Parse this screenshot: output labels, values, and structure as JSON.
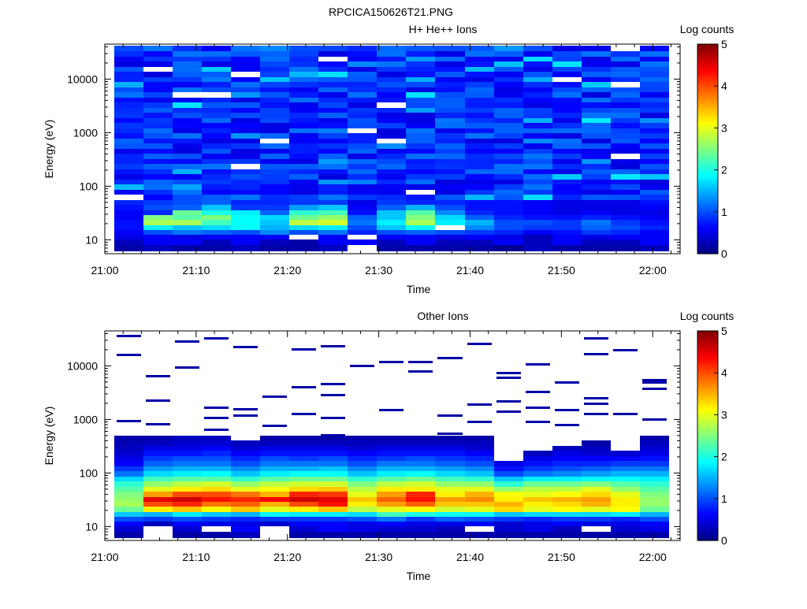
{
  "figure_title": "RPCICA150626T21.PNG",
  "chart_data": [
    {
      "type": "heatmap",
      "title": "H+ He++ Ions",
      "xlabel": "Time",
      "ylabel": "Energy (eV)",
      "yscale": "log",
      "ylim": [
        5.5,
        45000
      ],
      "xlim": [
        "21:00",
        "22:03"
      ],
      "x_ticks": [
        "21:00",
        "21:10",
        "21:20",
        "21:30",
        "21:40",
        "21:50",
        "22:00"
      ],
      "y_ticks": [
        "10",
        "100",
        "1000",
        "10000"
      ],
      "colorbar_label": "Log counts",
      "colorbar_ticks": [
        "0",
        "1",
        "2",
        "3",
        "4",
        "5"
      ],
      "colorbar_range": [
        0,
        5
      ],
      "colormap": "jet",
      "time_start": "21:01",
      "time_step_min": 3.2,
      "time_bins": 19,
      "energy_levels": [
        7,
        9,
        11,
        14,
        17,
        21,
        26,
        32,
        40,
        50,
        62,
        77,
        96,
        120,
        150,
        185,
        230,
        290,
        360,
        450,
        560,
        700,
        870,
        1080,
        1350,
        1680,
        2100,
        2600,
        3250,
        4050,
        5050,
        6300,
        7850,
        9800,
        12200,
        15200,
        19000,
        23700,
        29600,
        37000
      ],
      "low_energy_counts": [
        [
          0.2,
          0.3,
          0.2,
          0.2,
          0.3,
          0.2,
          0.2,
          0.3,
          null,
          0.2,
          0.2,
          0.2,
          0.2,
          0.1,
          0.3,
          0.2,
          0.2,
          0.2,
          0.3
        ],
        [
          0.3,
          0.6,
          0.6,
          0.3,
          0.6,
          0.3,
          0.2,
          0.6,
          0.6,
          0.3,
          0.6,
          0.3,
          0.3,
          0.6,
          0.3,
          0.6,
          0.3,
          0.3,
          0.6
        ],
        [
          0.5,
          0.6,
          0.5,
          0.6,
          0.6,
          0.6,
          null,
          0.6,
          null,
          0.6,
          0.6,
          0.5,
          0.6,
          0.5,
          0.3,
          0.6,
          0.5,
          0.6,
          0.6
        ],
        [
          0.6,
          1.0,
          1.2,
          1.1,
          1.0,
          1.3,
          1.0,
          1.2,
          0.8,
          1.0,
          1.1,
          1.0,
          0.9,
          0.8,
          0.6,
          0.7,
          0.9,
          0.8,
          0.6
        ],
        [
          0.7,
          1.8,
          1.6,
          1.7,
          1.9,
          1.5,
          1.7,
          1.8,
          1.0,
          1.6,
          1.9,
          null,
          1.3,
          1.0,
          0.9,
          0.9,
          1.1,
          1.0,
          0.8
        ],
        [
          0.7,
          2.7,
          2.7,
          2.2,
          1.9,
          1.6,
          2.8,
          2.9,
          1.2,
          1.8,
          2.7,
          1.8,
          1.5,
          1.0,
          1.0,
          0.9,
          1.2,
          0.9,
          0.7
        ],
        [
          0.6,
          2.5,
          2.3,
          2.5,
          1.9,
          1.7,
          2.4,
          2.6,
          1.1,
          1.6,
          2.5,
          1.7,
          1.1,
          0.8,
          0.7,
          0.7,
          0.8,
          0.7,
          0.6
        ],
        [
          0.6,
          0.8,
          2.4,
          2.0,
          1.8,
          1.1,
          2.1,
          2.2,
          0.7,
          1.6,
          2.3,
          1.3,
          0.8,
          0.7,
          0.6,
          0.5,
          0.6,
          0.5,
          0.5
        ],
        [
          0.7,
          1.0,
          1.1,
          1.6,
          0.9,
          0.9,
          1.4,
          1.6,
          0.6,
          1.1,
          1.5,
          1.0,
          0.7,
          0.7,
          0.6,
          0.5,
          0.5,
          0.5,
          0.6
        ],
        [
          0.8,
          0.9,
          1.0,
          1.1,
          0.8,
          0.8,
          0.9,
          0.9,
          0.5,
          0.9,
          0.8,
          0.8,
          0.7,
          0.7,
          0.6,
          0.5,
          0.5,
          0.5,
          0.7
        ]
      ]
    },
    {
      "type": "heatmap",
      "title": "Other Ions",
      "xlabel": "Time",
      "ylabel": "Energy (eV)",
      "yscale": "log",
      "ylim": [
        5.5,
        45000
      ],
      "xlim": [
        "21:00",
        "22:03"
      ],
      "x_ticks": [
        "21:00",
        "21:10",
        "21:20",
        "21:30",
        "21:40",
        "21:50",
        "22:00"
      ],
      "y_ticks": [
        "10",
        "100",
        "1000",
        "10000"
      ],
      "colorbar_label": "Log counts",
      "colorbar_ticks": [
        "0",
        "1",
        "2",
        "3",
        "4",
        "5"
      ],
      "colorbar_range": [
        0,
        5
      ],
      "colormap": "jet",
      "time_start": "21:01",
      "time_step_min": 3.2,
      "time_bins": 19,
      "energy_levels": [
        7,
        9,
        11,
        14,
        17,
        21,
        26,
        32,
        40,
        50,
        62,
        77,
        96,
        120,
        150,
        185,
        230,
        290,
        360,
        450
      ],
      "counts": [
        [
          0.2,
          null,
          0.2,
          0.2,
          0.3,
          null,
          0.2,
          0.2,
          0.2,
          0.2,
          0.2,
          0.2,
          0.2,
          0.2,
          0.2,
          0.2,
          0.2,
          0.2,
          0.2
        ],
        [
          0.4,
          null,
          0.4,
          null,
          0.6,
          null,
          0.4,
          0.6,
          0.5,
          0.4,
          0.4,
          0.3,
          null,
          0.4,
          0.5,
          0.3,
          null,
          0.4,
          0.5
        ],
        [
          0.6,
          0.3,
          0.6,
          0.5,
          0.5,
          0.4,
          0.6,
          0.6,
          0.5,
          0.6,
          0.5,
          0.5,
          0.6,
          0.4,
          0.5,
          0.6,
          0.5,
          0.5,
          0.6
        ],
        [
          1.0,
          0.9,
          1.0,
          0.9,
          0.8,
          0.9,
          0.9,
          0.9,
          1.0,
          1.2,
          0.9,
          1.1,
          1.0,
          0.9,
          0.8,
          0.9,
          0.9,
          0.8,
          1.0
        ],
        [
          1.6,
          1.5,
          1.8,
          1.6,
          1.5,
          1.9,
          1.8,
          1.8,
          1.7,
          2.2,
          2.0,
          1.9,
          1.9,
          1.6,
          1.7,
          1.7,
          1.7,
          1.8,
          1.5
        ],
        [
          2.4,
          3.2,
          3.4,
          3.1,
          3.4,
          3.0,
          3.2,
          3.4,
          2.8,
          3.0,
          3.1,
          2.9,
          3.0,
          3.3,
          3.0,
          3.1,
          3.0,
          3.1,
          2.4
        ],
        [
          2.7,
          4.0,
          4.2,
          3.8,
          3.9,
          3.5,
          4.0,
          4.3,
          3.2,
          3.6,
          3.9,
          3.4,
          3.4,
          3.5,
          3.2,
          3.3,
          3.5,
          3.2,
          2.6
        ],
        [
          2.6,
          4.5,
          4.6,
          4.3,
          4.2,
          4.4,
          4.6,
          4.5,
          3.4,
          3.9,
          4.3,
          3.6,
          3.7,
          3.2,
          3.4,
          3.5,
          3.6,
          3.2,
          2.6
        ],
        [
          2.5,
          3.6,
          4.0,
          4.0,
          3.8,
          3.5,
          4.2,
          4.1,
          3.0,
          3.6,
          4.2,
          3.2,
          3.5,
          3.1,
          3.0,
          3.1,
          3.3,
          3.0,
          2.5
        ],
        [
          2.3,
          3.0,
          3.2,
          3.3,
          3.0,
          3.1,
          3.3,
          3.4,
          2.8,
          3.2,
          3.2,
          3.0,
          3.0,
          2.6,
          2.8,
          2.8,
          3.0,
          2.6,
          2.3
        ],
        [
          2.1,
          2.6,
          2.8,
          2.9,
          2.6,
          2.8,
          2.9,
          2.9,
          2.5,
          2.8,
          2.9,
          2.6,
          2.6,
          2.1,
          2.4,
          2.4,
          2.5,
          2.3,
          2.1
        ],
        [
          1.7,
          2.2,
          2.3,
          2.3,
          2.1,
          2.3,
          2.4,
          2.4,
          2.1,
          2.3,
          2.4,
          2.2,
          2.1,
          1.6,
          1.8,
          1.8,
          1.9,
          1.9,
          1.8
        ],
        [
          1.2,
          1.7,
          1.8,
          1.9,
          1.6,
          1.8,
          1.9,
          1.9,
          1.6,
          1.8,
          1.9,
          1.7,
          1.6,
          1.0,
          1.2,
          1.3,
          1.4,
          1.5,
          1.5
        ],
        [
          0.9,
          1.4,
          1.5,
          1.5,
          1.3,
          1.5,
          1.5,
          1.6,
          1.3,
          1.5,
          1.5,
          1.4,
          1.3,
          0.7,
          0.9,
          1.0,
          1.1,
          1.2,
          1.2
        ],
        [
          0.6,
          1.1,
          1.2,
          1.2,
          1.0,
          1.2,
          1.2,
          1.2,
          1.0,
          1.2,
          1.2,
          1.1,
          1.0,
          0.5,
          0.7,
          0.8,
          0.8,
          0.9,
          0.9
        ],
        [
          0.5,
          0.9,
          1.0,
          1.0,
          0.8,
          1.0,
          0.9,
          1.0,
          0.8,
          0.9,
          1.0,
          0.9,
          0.8,
          null,
          0.5,
          0.6,
          0.6,
          0.6,
          0.7
        ],
        [
          0.4,
          0.7,
          0.7,
          0.8,
          0.6,
          0.7,
          0.7,
          0.7,
          0.6,
          0.7,
          0.7,
          0.7,
          0.6,
          null,
          0.3,
          0.5,
          0.4,
          0.4,
          0.5
        ],
        [
          0.3,
          0.5,
          0.5,
          0.6,
          0.4,
          0.5,
          0.5,
          0.5,
          0.4,
          0.5,
          0.5,
          0.5,
          0.4,
          null,
          null,
          0.3,
          0.3,
          null,
          0.4
        ],
        [
          0.3,
          0.3,
          0.4,
          0.4,
          0.3,
          0.3,
          0.3,
          0.3,
          0.3,
          0.3,
          0.3,
          0.3,
          0.3,
          null,
          null,
          null,
          0.2,
          null,
          0.3
        ],
        [
          0.2,
          0.2,
          0.3,
          0.3,
          null,
          0.2,
          0.2,
          0.2,
          0.2,
          0.2,
          0.2,
          0.2,
          0.2,
          null,
          null,
          null,
          null,
          null,
          0.2
        ]
      ],
      "sparse_high_energy": [
        [
          0,
          380
        ],
        [
          0,
          950
        ],
        [
          0,
          16500
        ],
        [
          0,
          37000
        ],
        [
          1,
          820
        ],
        [
          1,
          2300
        ],
        [
          1,
          6500
        ],
        [
          2,
          9500
        ],
        [
          2,
          29000
        ],
        [
          3,
          650
        ],
        [
          3,
          1100
        ],
        [
          3,
          1700
        ],
        [
          3,
          33000
        ],
        [
          4,
          1200
        ],
        [
          4,
          1600
        ],
        [
          4,
          23000
        ],
        [
          5,
          760
        ],
        [
          5,
          2700
        ],
        [
          6,
          1300
        ],
        [
          6,
          4000
        ],
        [
          6,
          21000
        ],
        [
          7,
          520
        ],
        [
          7,
          1100
        ],
        [
          7,
          2900
        ],
        [
          7,
          4700
        ],
        [
          7,
          24000
        ],
        [
          8,
          10000
        ],
        [
          9,
          1500
        ],
        [
          9,
          12000
        ],
        [
          10,
          8000
        ],
        [
          10,
          12000
        ],
        [
          11,
          550
        ],
        [
          11,
          1200
        ],
        [
          11,
          14000
        ],
        [
          12,
          900
        ],
        [
          12,
          1900
        ],
        [
          12,
          26000
        ],
        [
          13,
          1400
        ],
        [
          13,
          2200
        ],
        [
          13,
          6200
        ],
        [
          13,
          7500
        ],
        [
          14,
          900
        ],
        [
          14,
          1700
        ],
        [
          14,
          3300
        ],
        [
          14,
          11000
        ],
        [
          15,
          800
        ],
        [
          15,
          1500
        ],
        [
          15,
          5000
        ],
        [
          16,
          1300
        ],
        [
          16,
          2000
        ],
        [
          16,
          2500
        ],
        [
          16,
          17000
        ],
        [
          16,
          33000
        ],
        [
          17,
          1300
        ],
        [
          17,
          20000
        ],
        [
          18,
          1000
        ],
        [
          18,
          3800
        ],
        [
          18,
          5000
        ],
        [
          18,
          5600
        ]
      ]
    }
  ]
}
